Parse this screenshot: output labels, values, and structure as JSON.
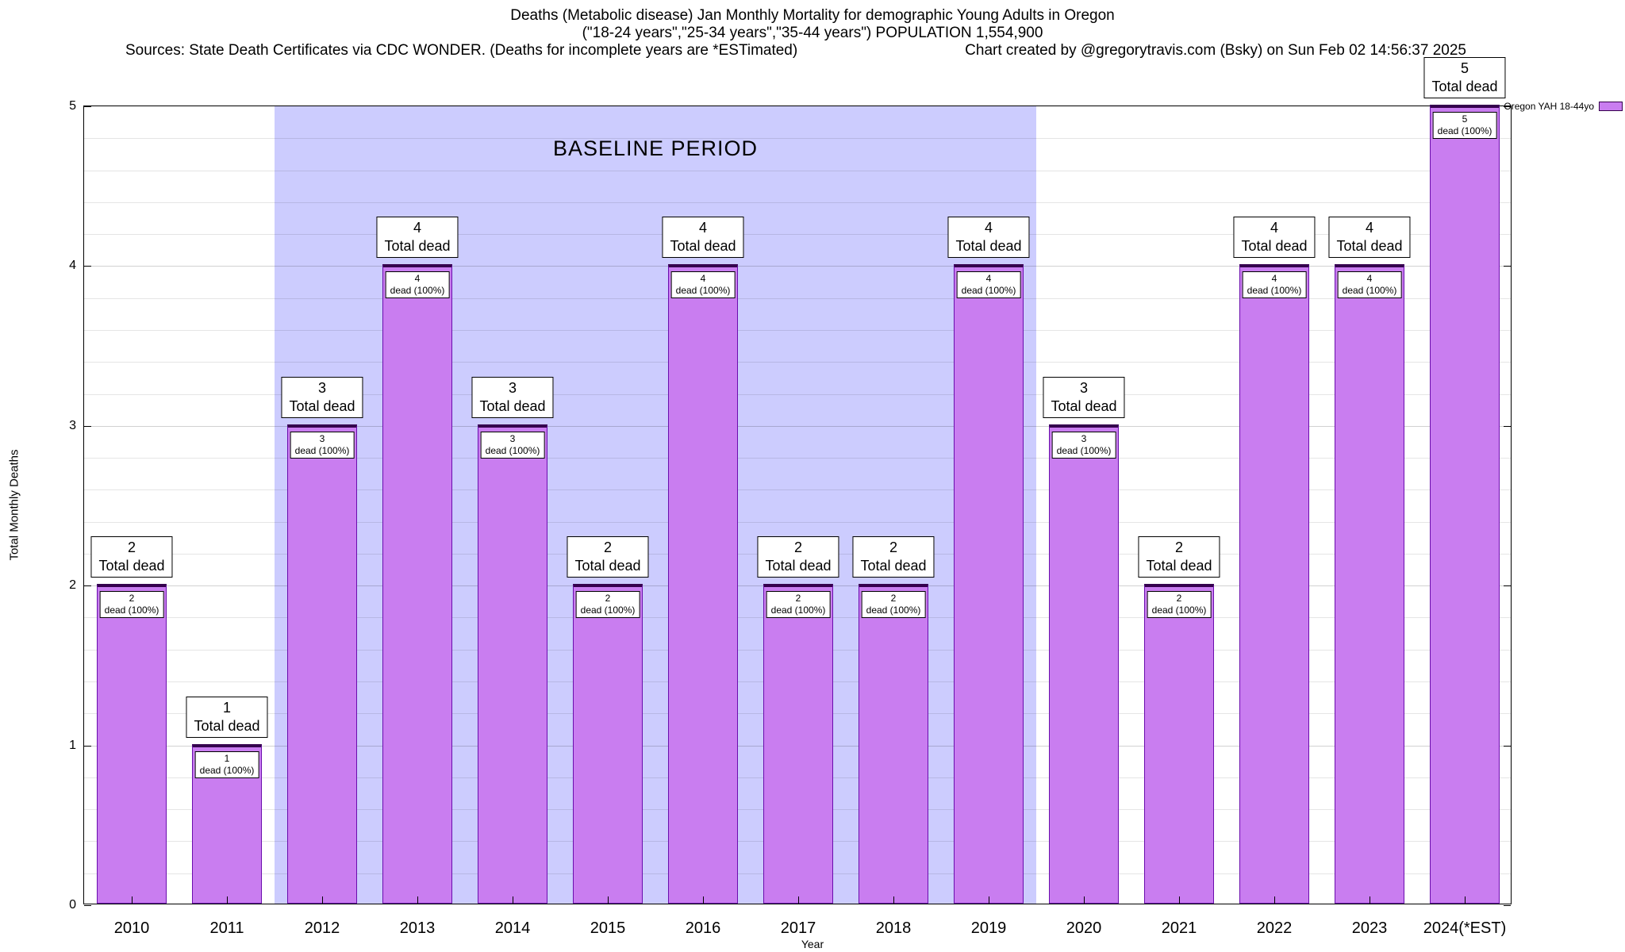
{
  "chart_data": {
    "type": "bar",
    "title": "Deaths (Metabolic disease) Jan Monthly Mortality for demographic Young Adults in Oregon",
    "subtitle": "(\"18-24 years\",\"25-34 years\",\"35-44 years\") POPULATION 1,554,900",
    "sources_note": "Sources: State Death Certificates via CDC WONDER. (Deaths for incomplete years are *ESTimated)",
    "credit": "Chart created by @gregorytravis.com (Bsky) on Sun Feb 02 14:56:37 2025",
    "xlabel": "Year",
    "ylabel": "Total Monthly Deaths",
    "ylim": [
      0,
      5
    ],
    "yticks": [
      0,
      1,
      2,
      3,
      4,
      5
    ],
    "grid": true,
    "categories": [
      "2010",
      "2011",
      "2012",
      "2013",
      "2014",
      "2015",
      "2016",
      "2017",
      "2018",
      "2019",
      "2020",
      "2021",
      "2022",
      "2023",
      "2024(*EST)"
    ],
    "values": [
      2,
      1,
      3,
      4,
      3,
      2,
      4,
      2,
      2,
      4,
      3,
      2,
      4,
      4,
      5
    ],
    "series": [
      {
        "name": "Oregon YAH 18-44yo",
        "values": [
          2,
          1,
          3,
          4,
          3,
          2,
          4,
          2,
          2,
          4,
          3,
          2,
          4,
          4,
          5
        ]
      }
    ],
    "bar_total_label_suffix": "Total dead",
    "bar_inner_label_suffix": "dead (100%)",
    "legend": {
      "entries": [
        "Oregon YAH 18-44yo"
      ],
      "position": "top-right"
    },
    "baseline_band": {
      "label": "BASELINE PERIOD",
      "from": "2012",
      "to": "2019",
      "color": "#ccccfe"
    },
    "colors": {
      "bar_fill": "#c97df0",
      "bar_border": "#6a0dad",
      "bar_top": "#35004d",
      "band": "#ccccfe"
    }
  }
}
